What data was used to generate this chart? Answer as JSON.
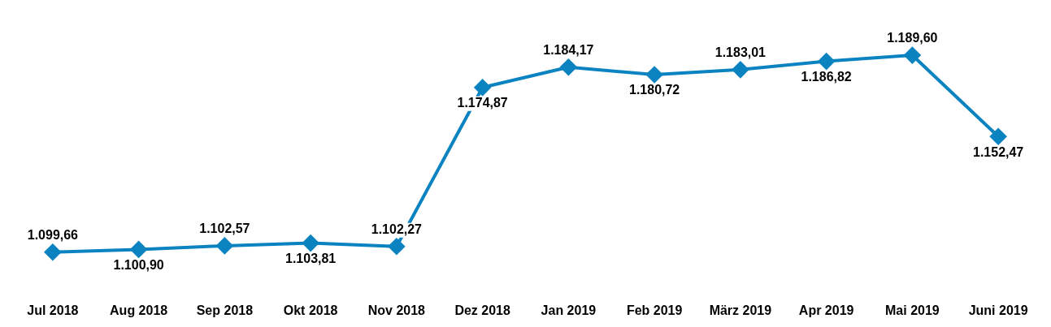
{
  "chart_data": {
    "type": "line",
    "categories": [
      "Jul 2018",
      "Aug 2018",
      "Sep 2018",
      "Okt 2018",
      "Nov 2018",
      "Dez 2018",
      "Jan 2019",
      "Feb 2019",
      "März 2019",
      "Apr 2019",
      "Mai 2019",
      "Juni 2019"
    ],
    "series": [
      {
        "color": "#0a83c0",
        "values": [
          1099.66,
          1100.9,
          1102.57,
          1103.81,
          1102.27,
          1174.87,
          1184.17,
          1180.72,
          1183.01,
          1186.82,
          1189.6,
          1152.47
        ],
        "value_labels": [
          "1.099,66",
          "1.100,90",
          "1.102,57",
          "1.103,81",
          "1.102,27",
          "1.174,87",
          "1.184,17",
          "1.180,72",
          "1.183,01",
          "1.186,82",
          "1.189,60",
          "1.152,47"
        ]
      }
    ],
    "marker": "diamond",
    "line_style": "solid",
    "legend": false,
    "grid": false,
    "tick_labels": "x"
  }
}
